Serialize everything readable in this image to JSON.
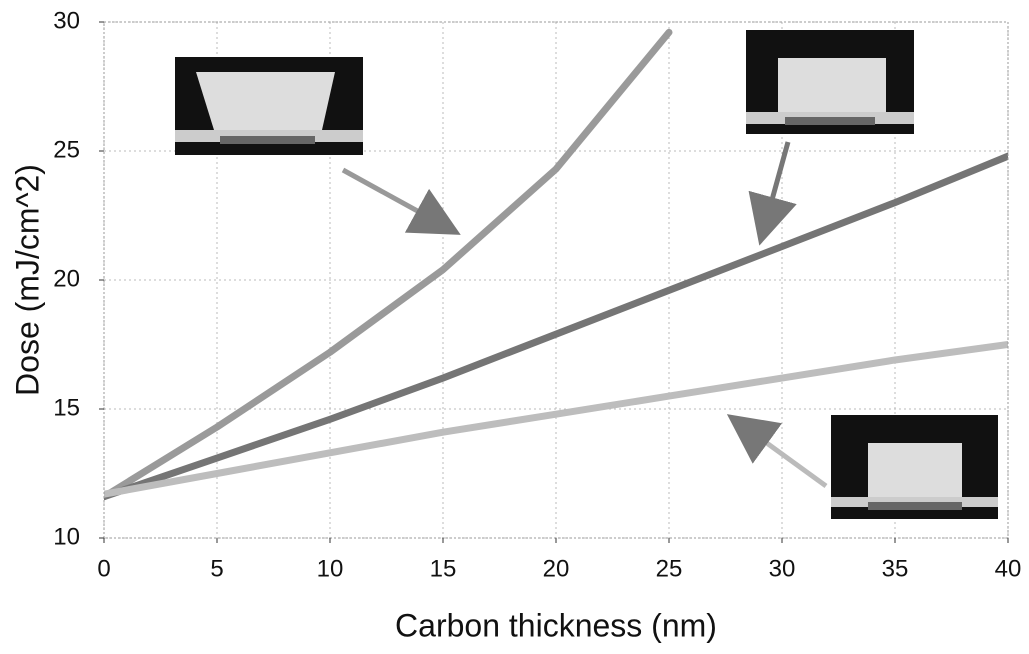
{
  "chart_data": {
    "type": "line",
    "x_label": "Carbon thickness (nm)",
    "y_label": "Dose (mJ/cm^2)",
    "x": [
      0,
      5,
      10,
      15,
      20,
      25,
      30,
      35,
      40
    ],
    "series": [
      {
        "color": "#9a9a9a",
        "values": [
          11.6,
          14.3,
          17.2,
          20.4,
          24.3,
          29.6,
          null,
          null,
          null
        ]
      },
      {
        "color": "#757575",
        "values": [
          11.6,
          13.1,
          14.6,
          16.2,
          17.9,
          19.6,
          21.3,
          23.0,
          24.8
        ]
      },
      {
        "color": "#bdbdbd",
        "values": [
          11.7,
          12.5,
          13.3,
          14.1,
          14.8,
          15.5,
          16.2,
          16.9,
          17.5
        ]
      }
    ],
    "xlim": [
      0,
      40
    ],
    "xticks": [
      0,
      5,
      10,
      15,
      20,
      25,
      30,
      35,
      40
    ],
    "ylim": [
      10,
      30
    ],
    "yticks": [
      10,
      15,
      20,
      25,
      30
    ],
    "grid": true
  }
}
